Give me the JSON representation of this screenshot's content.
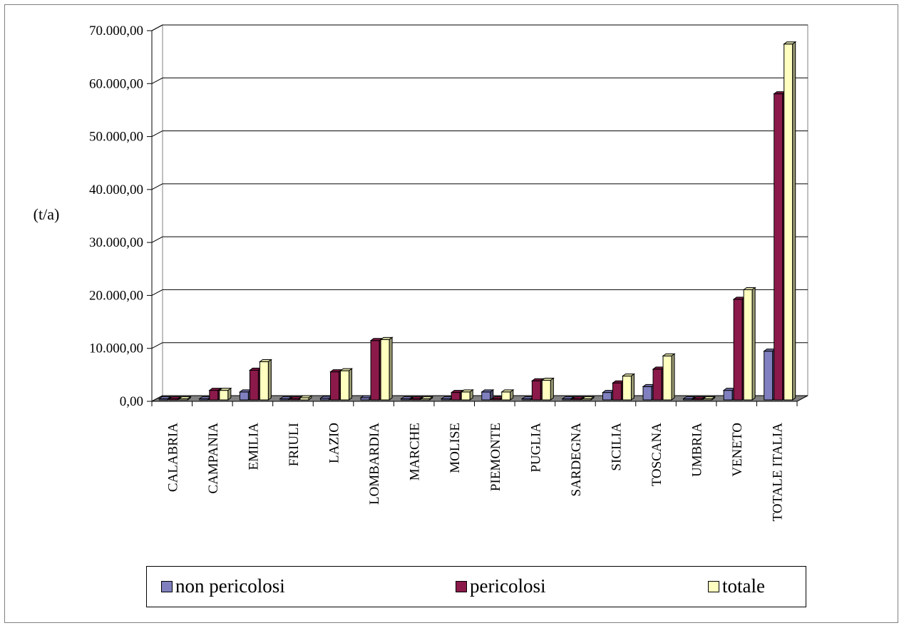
{
  "chart_data": {
    "type": "bar",
    "title": "",
    "xlabel": "",
    "ylabel": "(t/a)",
    "ylim": [
      0,
      70000
    ],
    "yticks": [
      "0,00",
      "10.000,00",
      "20.000,00",
      "30.000,00",
      "40.000,00",
      "50.000,00",
      "60.000,00",
      "70.000,00"
    ],
    "grid": true,
    "legend_position": "bottom",
    "categories": [
      "CALABRIA",
      "CAMPANIA",
      "EMILIA",
      "FRIULI",
      "LAZIO",
      "LOMBARDIA",
      "MARCHE",
      "MOLISE",
      "PIEMONTE",
      "PUGLIA",
      "SARDEGNA",
      "SICILIA",
      "TOSCANA",
      "UMBRIA",
      "VENETO",
      "TOTALE ITALIA"
    ],
    "series": [
      {
        "name": "non pericolosi",
        "color": "#8080c0",
        "values": [
          0,
          100,
          1500,
          50,
          300,
          400,
          10,
          200,
          1500,
          100,
          10,
          1400,
          2500,
          30,
          1800,
          9200
        ]
      },
      {
        "name": "pericolosi",
        "color": "#8b1a4a",
        "values": [
          0,
          1800,
          5600,
          50,
          5300,
          11200,
          20,
          1400,
          200,
          3600,
          100,
          3200,
          5800,
          50,
          19000,
          57800
        ]
      },
      {
        "name": "totale",
        "color": "#ffffc0",
        "values": [
          50,
          1800,
          7200,
          400,
          5500,
          11400,
          80,
          1500,
          1500,
          3700,
          120,
          4500,
          8300,
          90,
          20800,
          67200
        ]
      }
    ]
  }
}
